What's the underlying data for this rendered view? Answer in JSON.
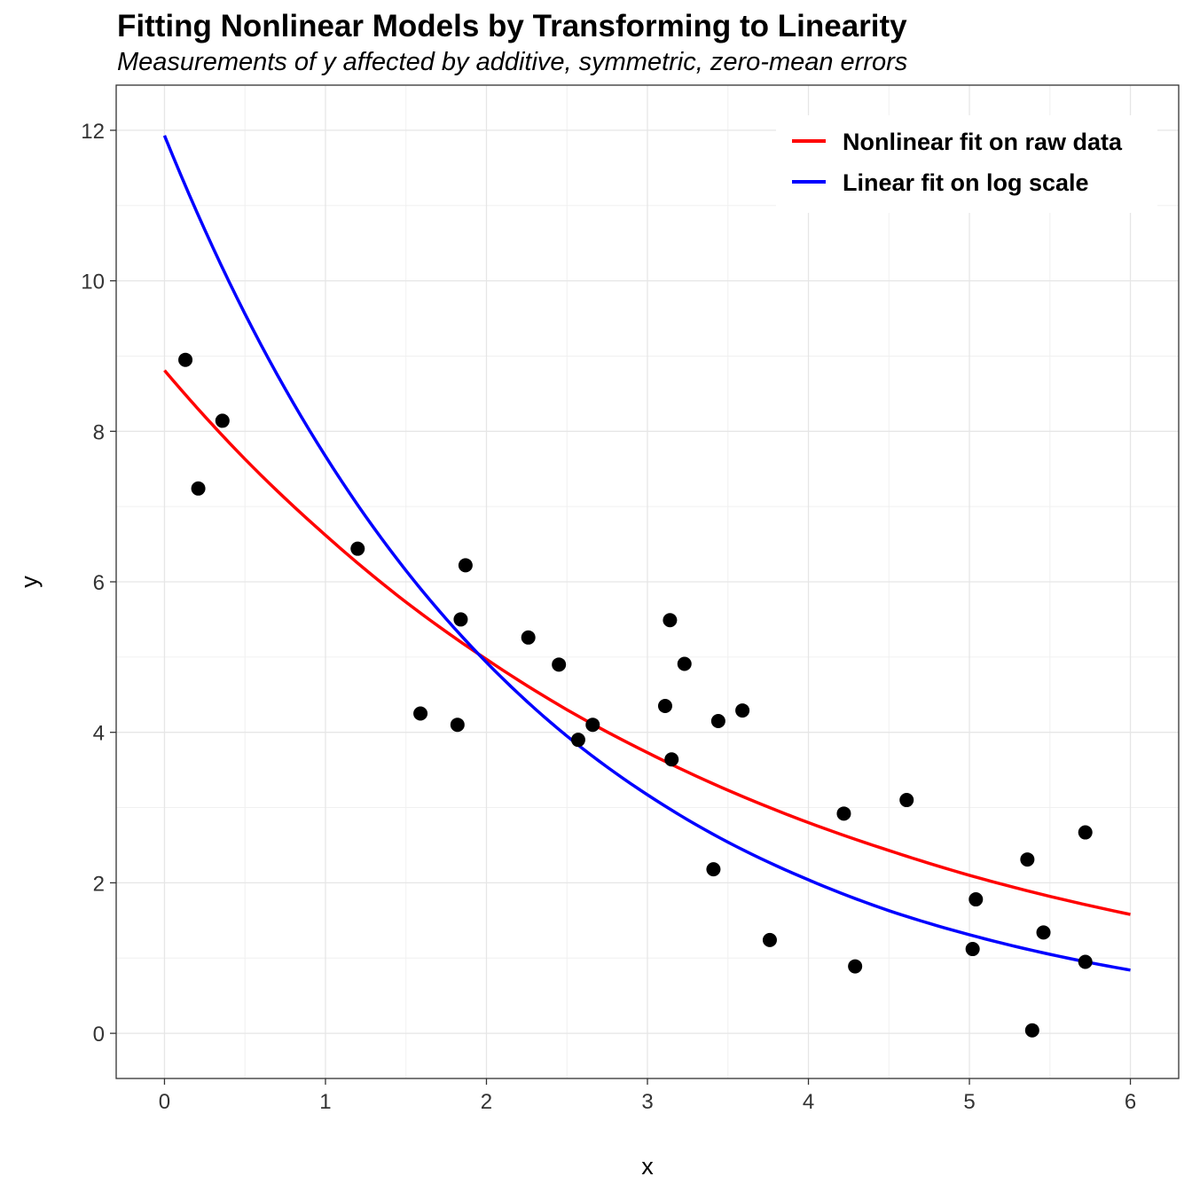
{
  "chart_data": {
    "type": "scatter",
    "title": "Fitting Nonlinear Models by Transforming to Linearity",
    "subtitle": "Measurements of y affected by additive, symmetric, zero-mean errors",
    "xlabel": "x",
    "ylabel": "y",
    "xlim": [
      -0.3,
      6.3
    ],
    "ylim": [
      -0.6,
      12.6
    ],
    "xticks": [
      "0",
      "1",
      "2",
      "3",
      "4",
      "5",
      "6"
    ],
    "yticks": [
      "0",
      "2",
      "4",
      "6",
      "8",
      "10",
      "12"
    ],
    "grid": true,
    "legend_position": "top-right",
    "points": {
      "color": "#000000",
      "x": [
        0.13,
        0.36,
        0.21,
        1.2,
        1.87,
        1.84,
        1.59,
        1.82,
        2.26,
        2.45,
        2.66,
        2.57,
        3.14,
        3.23,
        3.11,
        3.44,
        3.59,
        3.15,
        3.41,
        3.76,
        4.22,
        4.29,
        4.61,
        5.04,
        5.02,
        5.36,
        5.46,
        5.39,
        5.72,
        5.72
      ],
      "y": [
        8.95,
        8.14,
        7.24,
        6.44,
        6.22,
        5.5,
        4.25,
        4.1,
        5.26,
        4.9,
        4.1,
        3.9,
        5.49,
        4.91,
        4.35,
        4.15,
        4.29,
        3.64,
        2.18,
        1.24,
        2.92,
        0.89,
        3.1,
        1.78,
        1.12,
        2.31,
        1.34,
        0.04,
        2.67,
        0.95
      ]
    },
    "series": [
      {
        "name": "Nonlinear fit on raw data",
        "color": "#FF0000",
        "x": [
          0,
          0.5,
          1,
          1.5,
          2,
          2.5,
          3,
          3.5,
          4,
          4.5,
          5,
          5.5,
          6
        ],
        "y": [
          8.81,
          7.63,
          6.62,
          5.73,
          4.97,
          4.3,
          3.73,
          3.23,
          2.8,
          2.43,
          2.1,
          1.82,
          1.58
        ]
      },
      {
        "name": "Linear fit on log scale",
        "color": "#0000FF",
        "x": [
          0,
          0.5,
          1,
          1.5,
          2,
          2.5,
          3,
          3.5,
          4,
          4.5,
          5,
          5.5,
          6
        ],
        "y": [
          11.93,
          9.56,
          7.67,
          6.15,
          4.93,
          3.95,
          3.17,
          2.54,
          2.04,
          1.63,
          1.31,
          1.05,
          0.84
        ]
      }
    ]
  }
}
